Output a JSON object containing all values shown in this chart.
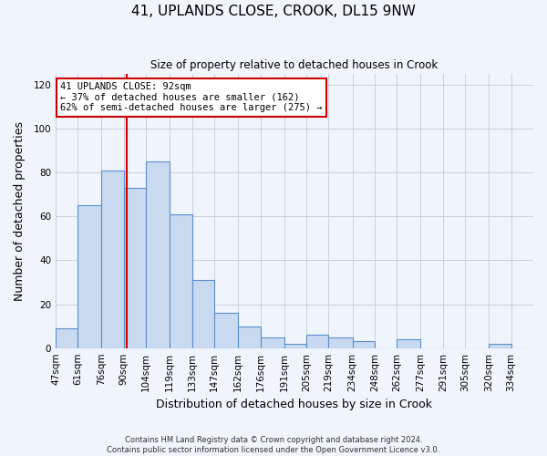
{
  "title": "41, UPLANDS CLOSE, CROOK, DL15 9NW",
  "subtitle": "Size of property relative to detached houses in Crook",
  "xlabel": "Distribution of detached houses by size in Crook",
  "ylabel": "Number of detached properties",
  "footer_line1": "Contains HM Land Registry data © Crown copyright and database right 2024.",
  "footer_line2": "Contains public sector information licensed under the Open Government Licence v3.0.",
  "bin_labels": [
    "47sqm",
    "61sqm",
    "76sqm",
    "90sqm",
    "104sqm",
    "119sqm",
    "133sqm",
    "147sqm",
    "162sqm",
    "176sqm",
    "191sqm",
    "205sqm",
    "219sqm",
    "234sqm",
    "248sqm",
    "262sqm",
    "277sqm",
    "291sqm",
    "305sqm",
    "320sqm",
    "334sqm"
  ],
  "bin_edges": [
    47,
    61,
    76,
    90,
    104,
    119,
    133,
    147,
    162,
    176,
    191,
    205,
    219,
    234,
    248,
    262,
    277,
    291,
    305,
    320,
    334,
    348
  ],
  "bar_values": [
    9,
    65,
    81,
    73,
    85,
    61,
    31,
    16,
    10,
    5,
    2,
    6,
    5,
    3,
    0,
    4,
    0,
    0,
    0,
    2,
    0
  ],
  "bar_color": "#c9d9f0",
  "bar_edge_color": "#5b8fc9",
  "vline_x": 92,
  "vline_color": "#cc0000",
  "annotation_title": "41 UPLANDS CLOSE: 92sqm",
  "annotation_line2": "← 37% of detached houses are smaller (162)",
  "annotation_line3": "62% of semi-detached houses are larger (275) →",
  "annotation_box_color": "#cc0000",
  "ylim": [
    0,
    125
  ],
  "yticks": [
    0,
    20,
    40,
    60,
    80,
    100,
    120
  ],
  "background_color": "#f0f4fc",
  "grid_color": "#c8d0e0"
}
